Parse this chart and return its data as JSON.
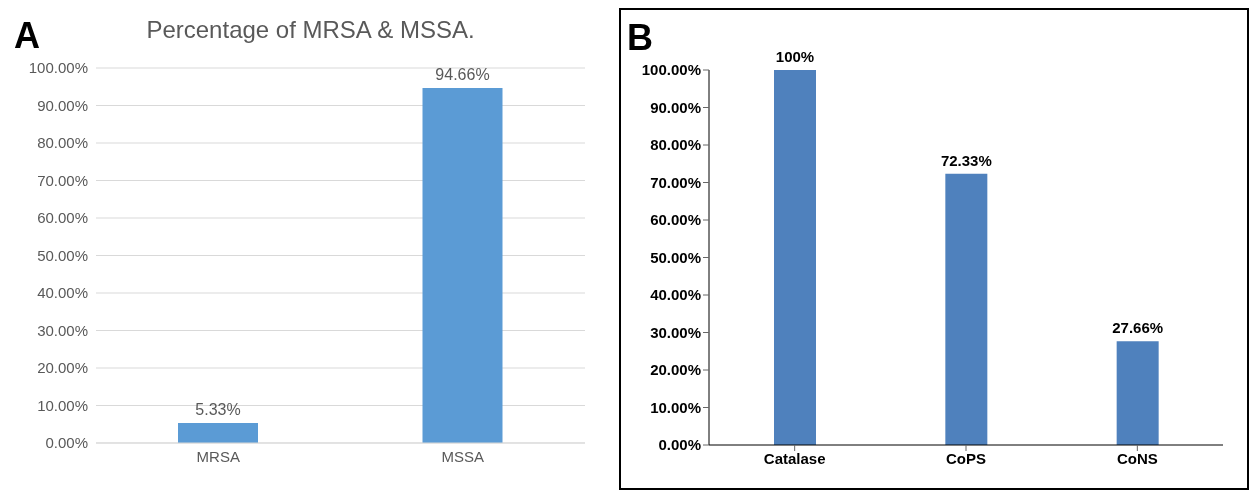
{
  "chart_data": [
    {
      "type": "bar",
      "title": "Percentage of MRSA & MSSA.",
      "annotations": [
        "A"
      ],
      "categories": [
        "MRSA",
        "MSSA"
      ],
      "values": [
        5.33,
        94.66
      ],
      "value_labels": [
        "5.33%",
        "94.66%"
      ],
      "color": "#5b9bd5",
      "ylim": [
        0,
        100
      ],
      "yticks": [
        {
          "value": 0,
          "label": "0.00%"
        },
        {
          "value": 10,
          "label": "10.00%"
        },
        {
          "value": 20,
          "label": "20.00%"
        },
        {
          "value": 30,
          "label": "30.00%"
        },
        {
          "value": 40,
          "label": "40.00%"
        },
        {
          "value": 50,
          "label": "50.00%"
        },
        {
          "value": 60,
          "label": "60.00%"
        },
        {
          "value": 70,
          "label": "70.00%"
        },
        {
          "value": 80,
          "label": "80.00%"
        },
        {
          "value": 90,
          "label": "90.00%"
        },
        {
          "value": 100,
          "label": "100.00%"
        }
      ],
      "grid": "y"
    },
    {
      "type": "bar",
      "annotations": [
        "B"
      ],
      "categories": [
        "Catalase",
        "CoPS",
        "CoNS"
      ],
      "values": [
        100,
        72.33,
        27.66
      ],
      "value_labels": [
        "100%",
        "72.33%",
        "27.66%"
      ],
      "color": "#4f81bd",
      "ylim": [
        0,
        100
      ],
      "yticks": [
        {
          "value": 0,
          "label": "0.00%"
        },
        {
          "value": 10,
          "label": "10.00%"
        },
        {
          "value": 20,
          "label": "20.00%"
        },
        {
          "value": 30,
          "label": "30.00%"
        },
        {
          "value": 40,
          "label": "40.00%"
        },
        {
          "value": 50,
          "label": "50.00%"
        },
        {
          "value": 60,
          "label": "60.00%"
        },
        {
          "value": 70,
          "label": "70.00%"
        },
        {
          "value": 80,
          "label": "80.00%"
        },
        {
          "value": 90,
          "label": "90.00%"
        },
        {
          "value": 100,
          "label": "100.00%"
        }
      ],
      "grid": false
    }
  ]
}
